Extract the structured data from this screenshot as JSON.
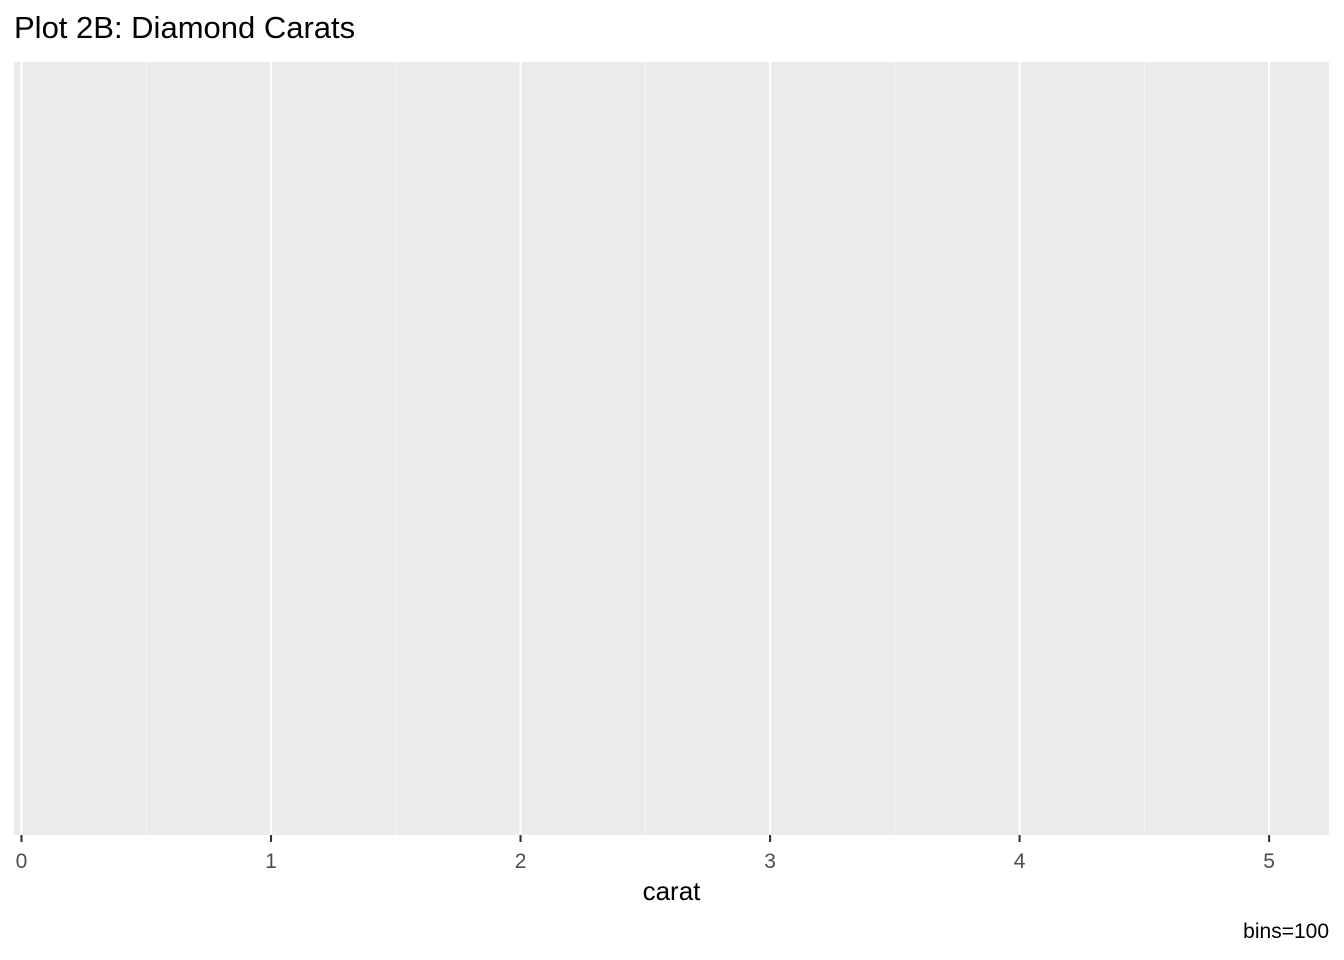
{
  "chart_data": {
    "type": "histogram",
    "title": "Plot 2B: Diamond Carats",
    "xlabel": "carat",
    "ylabel": "",
    "caption": "bins=100",
    "xlim": [
      -0.03,
      5.24
    ],
    "x_major_ticks": [
      0,
      1,
      2,
      3,
      4,
      5
    ],
    "x_tick_labels": [
      "0",
      "1",
      "2",
      "3",
      "4",
      "5"
    ],
    "x_minor_ticks": [
      0.5,
      1.5,
      2.5,
      3.5,
      4.5
    ],
    "y_axis_shown": false,
    "grid": true,
    "bins": 100,
    "values": []
  },
  "colors": {
    "panel_background": "#ebebeb",
    "grid_major": "#ffffff",
    "grid_minor": "#f6f6f6",
    "tick_color": "#333333",
    "tick_label_color": "#4d4d4d"
  }
}
